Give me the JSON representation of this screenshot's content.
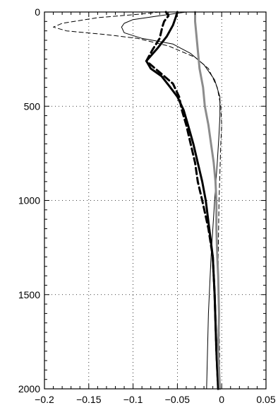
{
  "chart_data": {
    "type": "line",
    "title": "",
    "xlabel": "",
    "ylabel": "",
    "xlim": [
      -0.2,
      0.05
    ],
    "ylim": [
      0,
      2000
    ],
    "y_inverted": true,
    "grid": "dotted",
    "legend": "none",
    "x_ticks": [
      -0.2,
      -0.15,
      -0.1,
      -0.05,
      0,
      0.05
    ],
    "x_tick_labels": [
      "−0.2",
      "−0.15",
      "−0.1",
      "−0.05",
      "0",
      "0.05"
    ],
    "y_ticks": [
      0,
      500,
      1000,
      1500,
      2000
    ],
    "y_tick_labels": [
      "0",
      "500",
      "1000",
      "1500",
      "2000"
    ],
    "series": [
      {
        "style": "thin-dashed",
        "color": "#000000",
        "points": [
          [
            -0.07,
            0
          ],
          [
            -0.09,
            10
          ],
          [
            -0.14,
            30
          ],
          [
            -0.18,
            60
          ],
          [
            -0.19,
            80
          ],
          [
            -0.175,
            100
          ],
          [
            -0.13,
            120
          ],
          [
            -0.095,
            140
          ],
          [
            -0.06,
            180
          ],
          [
            -0.03,
            240
          ],
          [
            -0.015,
            300
          ],
          [
            -0.005,
            400
          ],
          [
            -0.001,
            500
          ],
          [
            0.0,
            600
          ],
          [
            -0.001,
            700
          ],
          [
            -0.002,
            850
          ],
          [
            -0.003,
            1000
          ],
          [
            -0.004,
            1300
          ],
          [
            -0.003,
            1600
          ],
          [
            -0.002,
            2000
          ]
        ]
      },
      {
        "style": "thin-solid",
        "color": "#000000",
        "points": [
          [
            -0.04,
            0
          ],
          [
            -0.07,
            20
          ],
          [
            -0.1,
            40
          ],
          [
            -0.11,
            60
          ],
          [
            -0.113,
            80
          ],
          [
            -0.11,
            110
          ],
          [
            -0.09,
            140
          ],
          [
            -0.055,
            170
          ],
          [
            -0.035,
            220
          ],
          [
            -0.02,
            280
          ],
          [
            -0.008,
            360
          ],
          [
            -0.002,
            450
          ],
          [
            -0.002,
            550
          ],
          [
            -0.003,
            650
          ],
          [
            -0.005,
            800
          ],
          [
            -0.008,
            1000
          ],
          [
            -0.012,
            1300
          ],
          [
            -0.015,
            1600
          ],
          [
            -0.017,
            2000
          ]
        ]
      },
      {
        "style": "thick-dashed",
        "color": "#000000",
        "points": [
          [
            -0.063,
            0
          ],
          [
            -0.06,
            20
          ],
          [
            -0.065,
            50
          ],
          [
            -0.067,
            80
          ],
          [
            -0.07,
            140
          ],
          [
            -0.078,
            200
          ],
          [
            -0.085,
            260
          ],
          [
            -0.07,
            320
          ],
          [
            -0.055,
            380
          ],
          [
            -0.048,
            450
          ],
          [
            -0.045,
            520
          ],
          [
            -0.04,
            600
          ],
          [
            -0.035,
            700
          ],
          [
            -0.03,
            800
          ],
          [
            -0.027,
            900
          ],
          [
            -0.022,
            1000
          ],
          [
            -0.015,
            1150
          ],
          [
            -0.01,
            1300
          ],
          [
            -0.008,
            1500
          ],
          [
            -0.006,
            1800
          ],
          [
            -0.004,
            2000
          ]
        ]
      },
      {
        "style": "thick-solid",
        "color": "#000000",
        "points": [
          [
            -0.05,
            0
          ],
          [
            -0.052,
            30
          ],
          [
            -0.055,
            70
          ],
          [
            -0.062,
            130
          ],
          [
            -0.072,
            190
          ],
          [
            -0.085,
            260
          ],
          [
            -0.08,
            300
          ],
          [
            -0.068,
            340
          ],
          [
            -0.058,
            400
          ],
          [
            -0.05,
            450
          ],
          [
            -0.043,
            520
          ],
          [
            -0.038,
            600
          ],
          [
            -0.032,
            700
          ],
          [
            -0.027,
            800
          ],
          [
            -0.022,
            900
          ],
          [
            -0.018,
            1000
          ],
          [
            -0.014,
            1150
          ],
          [
            -0.01,
            1300
          ],
          [
            -0.008,
            1500
          ],
          [
            -0.006,
            1800
          ],
          [
            -0.004,
            2000
          ]
        ]
      },
      {
        "style": "thick-solid",
        "color": "#8c8c8c",
        "points": [
          [
            -0.03,
            0
          ],
          [
            -0.03,
            50
          ],
          [
            -0.029,
            100
          ],
          [
            -0.027,
            200
          ],
          [
            -0.025,
            300
          ],
          [
            -0.021,
            400
          ],
          [
            -0.019,
            500
          ],
          [
            -0.015,
            600
          ],
          [
            -0.012,
            700
          ],
          [
            -0.009,
            800
          ],
          [
            -0.007,
            900
          ],
          [
            -0.006,
            1000
          ],
          [
            -0.006,
            1150
          ],
          [
            -0.005,
            1300
          ],
          [
            -0.004,
            1400
          ],
          [
            -0.003,
            1600
          ],
          [
            -0.004,
            1800
          ],
          [
            -0.002,
            2000
          ]
        ]
      }
    ]
  }
}
